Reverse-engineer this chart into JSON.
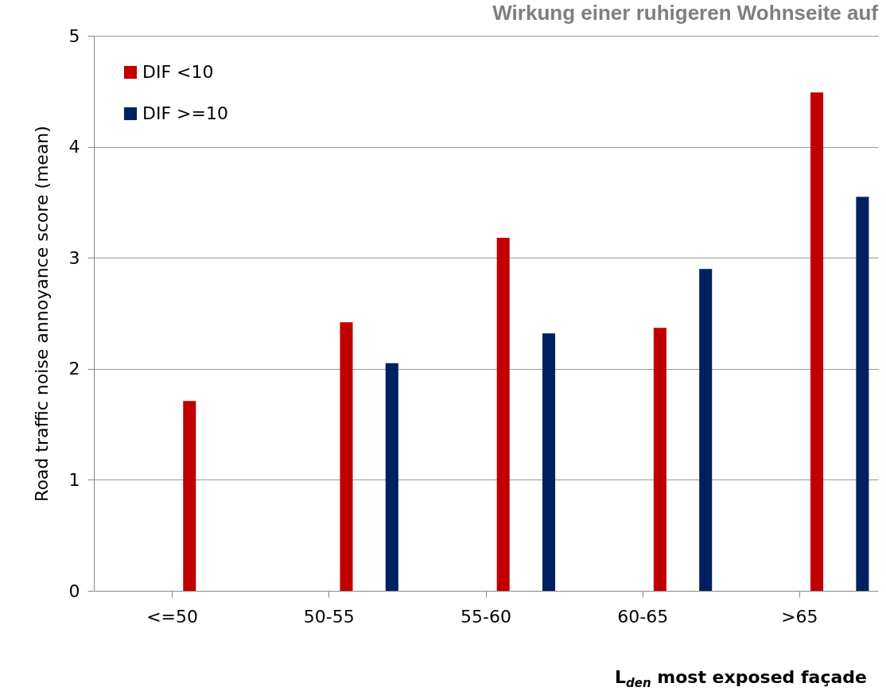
{
  "chart_data": {
    "type": "bar",
    "title": "Wirkung einer ruhigeren Wohnseite auf",
    "xlabel": "L$_{den}$ most exposed façade",
    "ylabel": "Road traffic noise annoyance score (mean)",
    "categories": [
      "<=50",
      "50-55",
      "55-60",
      "60-65",
      ">65"
    ],
    "series": [
      {
        "name": "DIF <10",
        "color": "#c00000",
        "values": [
          1.71,
          2.42,
          3.18,
          2.37,
          4.49
        ]
      },
      {
        "name": "DIF >=10",
        "color": "#002060",
        "values": [
          null,
          2.05,
          2.32,
          2.9,
          3.55
        ]
      }
    ],
    "ylim": [
      0,
      5
    ],
    "yticks": [
      0,
      1,
      2,
      3,
      4,
      5
    ],
    "grid": "y",
    "legend": "top left"
  }
}
